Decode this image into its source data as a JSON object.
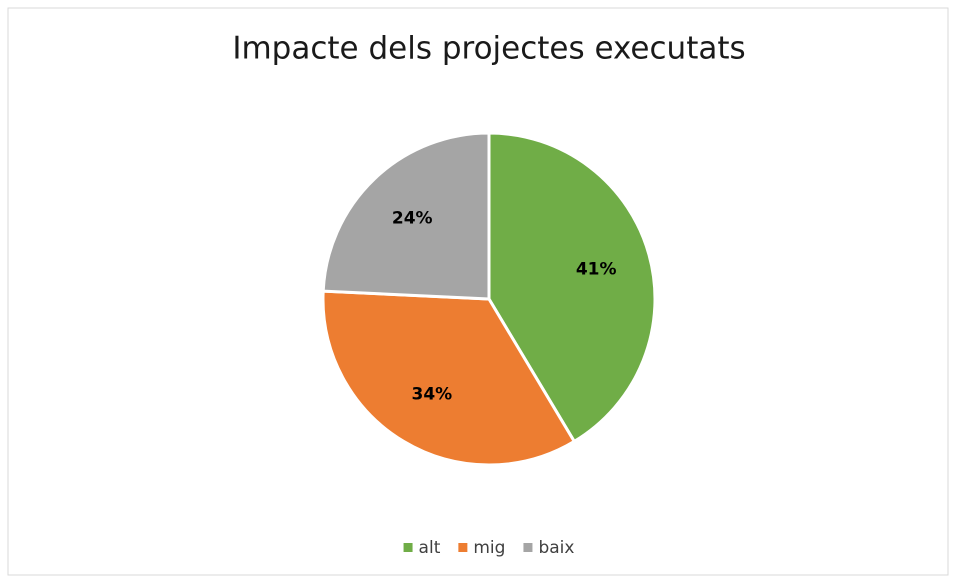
{
  "chart_data": {
    "type": "pie",
    "title": "Impacte dels projectes executats",
    "categories": [
      "alt",
      "mig",
      "baix"
    ],
    "values": [
      41,
      34,
      24
    ],
    "value_labels": [
      "41%",
      "34%",
      "24%"
    ],
    "colors": [
      "#70ad47",
      "#ed7d31",
      "#a5a5a5"
    ],
    "legend": "bottom"
  }
}
